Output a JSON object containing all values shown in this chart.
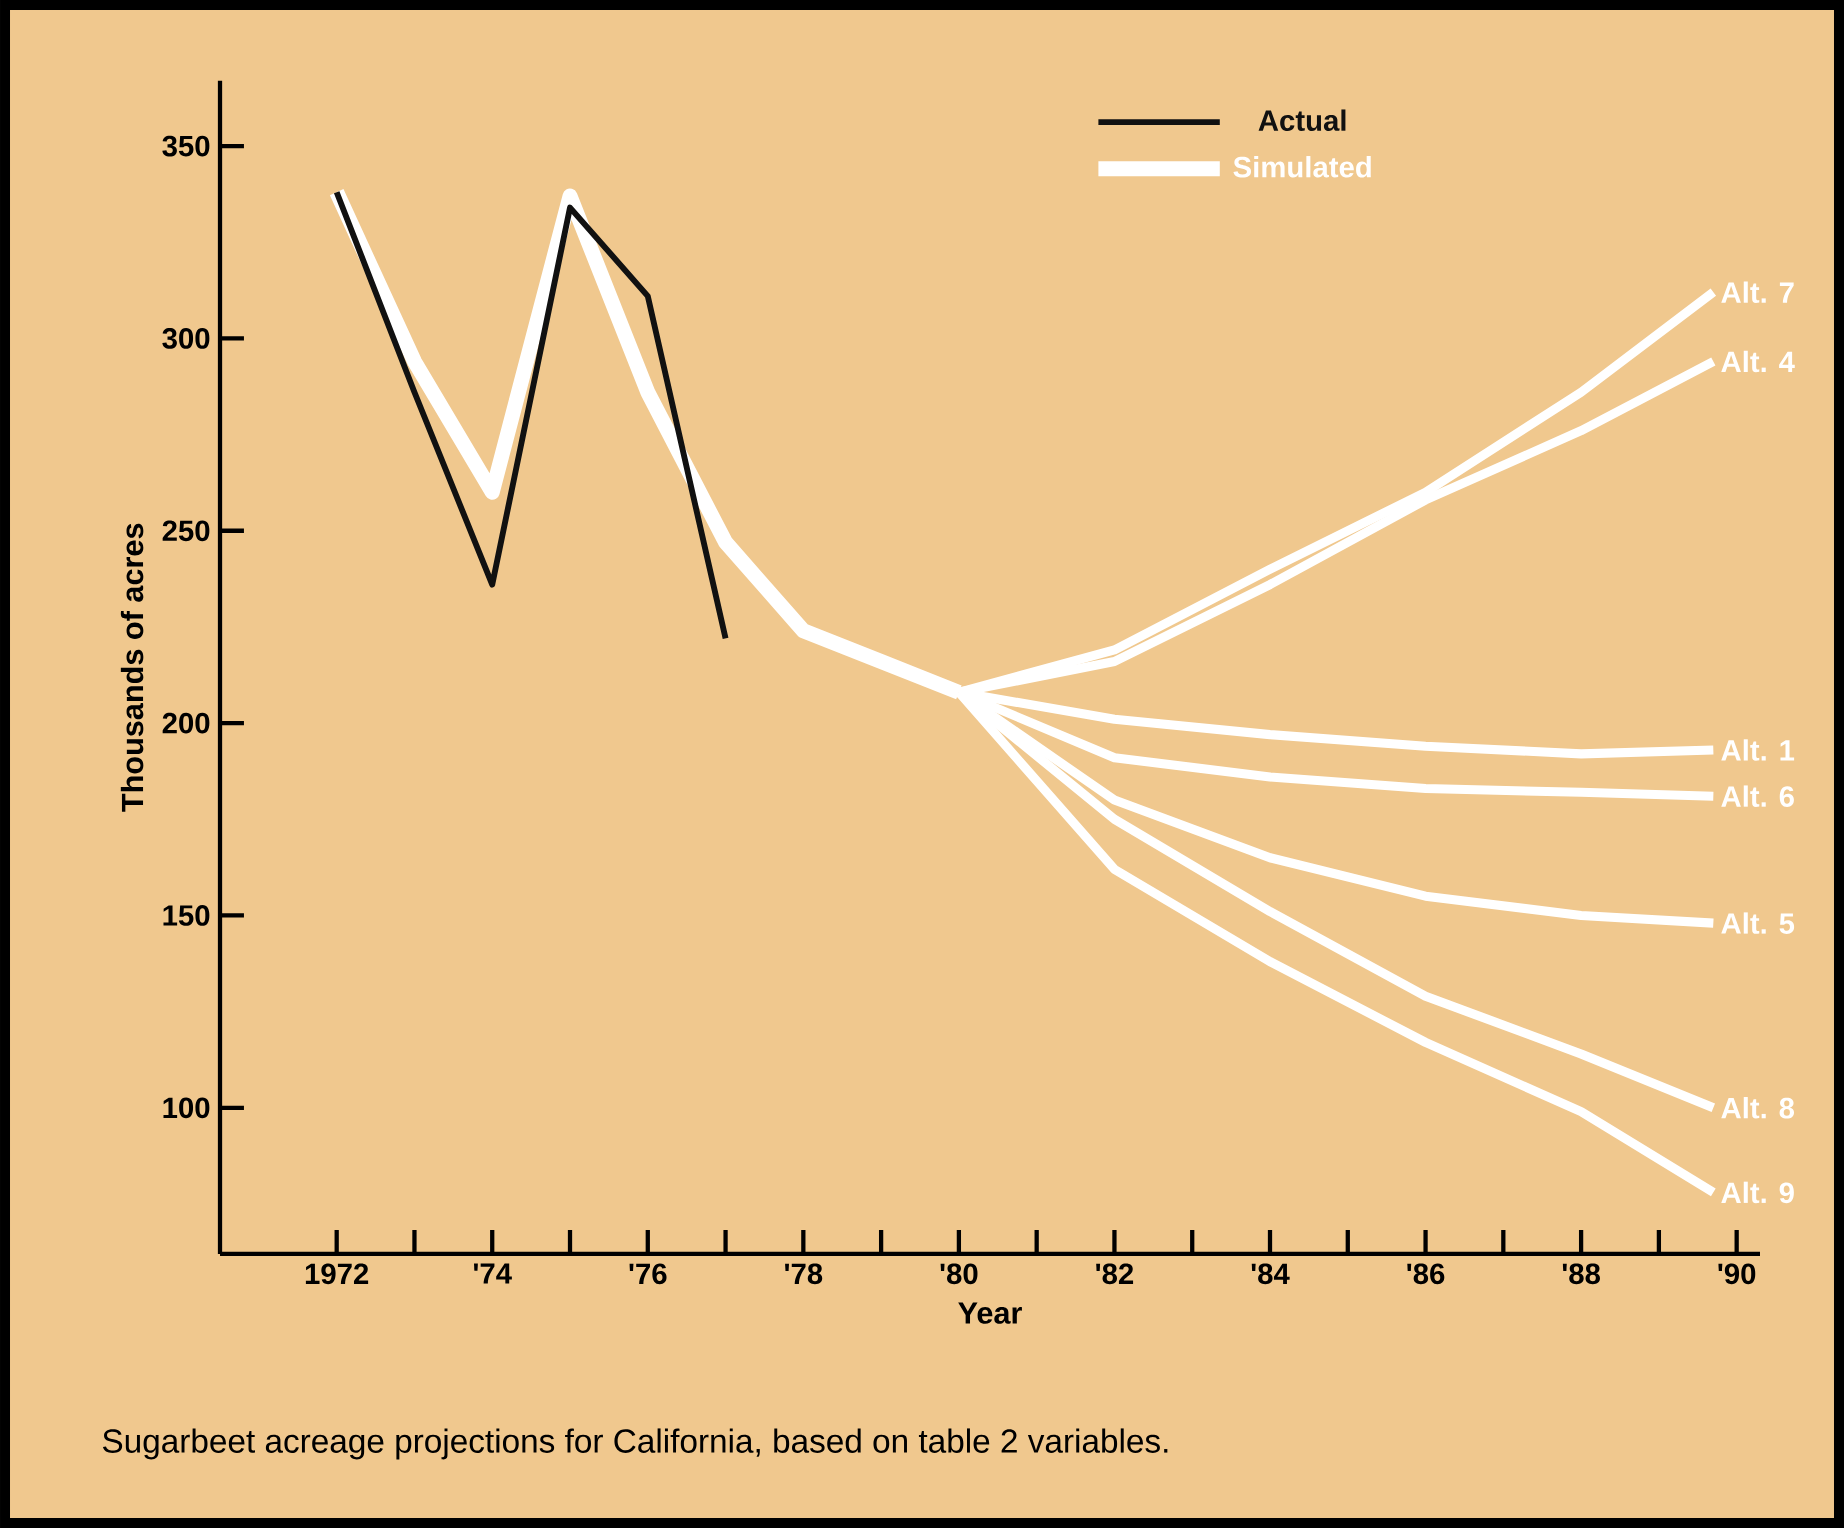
{
  "chart_data": {
    "type": "line",
    "xlabel": "Year",
    "ylabel": "Thousands of acres",
    "x": [
      1972,
      1973,
      1974,
      1975,
      1976,
      1977,
      1978,
      1979,
      1980
    ],
    "xlim": [
      1970.5,
      1990.3
    ],
    "ylim": [
      62,
      367
    ],
    "xticks": [
      {
        "value": 1972,
        "label": "1972"
      },
      {
        "value": 1973,
        "label": null
      },
      {
        "value": 1974,
        "label": "'74"
      },
      {
        "value": 1975,
        "label": null
      },
      {
        "value": 1976,
        "label": "'76"
      },
      {
        "value": 1977,
        "label": null
      },
      {
        "value": 1978,
        "label": "'78"
      },
      {
        "value": 1979,
        "label": null
      },
      {
        "value": 1980,
        "label": "'80"
      },
      {
        "value": 1981,
        "label": null
      },
      {
        "value": 1982,
        "label": "'82"
      },
      {
        "value": 1983,
        "label": null
      },
      {
        "value": 1984,
        "label": "'84"
      },
      {
        "value": 1985,
        "label": null
      },
      {
        "value": 1986,
        "label": "'86"
      },
      {
        "value": 1987,
        "label": null
      },
      {
        "value": 1988,
        "label": "'88"
      },
      {
        "value": 1989,
        "label": null
      },
      {
        "value": 1990,
        "label": "'90"
      }
    ],
    "yticks": [
      100,
      150,
      200,
      250,
      300,
      350
    ],
    "legend": "top",
    "series": [
      {
        "name": "Simulated",
        "color": "#ffffff",
        "values": [
          338,
          294,
          260,
          337,
          286,
          247,
          224,
          216,
          208
        ]
      },
      {
        "name": "Actual",
        "color": "#111111",
        "values": [
          338,
          286,
          236,
          334,
          311,
          222,
          null,
          null,
          null
        ]
      },
      {
        "name": "Alt. 7",
        "color": "#ffffff",
        "x": [
          1980,
          1982,
          1984,
          1986,
          1988,
          1989.7
        ],
        "values": [
          208,
          219,
          240,
          260,
          286,
          312
        ]
      },
      {
        "name": "Alt. 4",
        "color": "#ffffff",
        "x": [
          1980,
          1982,
          1984,
          1986,
          1988,
          1989.7
        ],
        "values": [
          208,
          216,
          236,
          258,
          276,
          294
        ]
      },
      {
        "name": "Alt. 1",
        "color": "#ffffff",
        "x": [
          1980,
          1982,
          1984,
          1986,
          1988,
          1989.7
        ],
        "values": [
          208,
          201,
          197,
          194,
          192,
          193
        ]
      },
      {
        "name": "Alt. 6",
        "color": "#ffffff",
        "x": [
          1980,
          1982,
          1984,
          1986,
          1988,
          1989.7
        ],
        "values": [
          208,
          191,
          186,
          183,
          182,
          181
        ]
      },
      {
        "name": "Alt. 5",
        "color": "#ffffff",
        "x": [
          1980,
          1982,
          1984,
          1986,
          1988,
          1989.7
        ],
        "values": [
          208,
          180,
          165,
          155,
          150,
          148
        ]
      },
      {
        "name": "Alt. 8",
        "color": "#ffffff",
        "x": [
          1980,
          1982,
          1984,
          1986,
          1988,
          1989.7
        ],
        "values": [
          208,
          175,
          151,
          129,
          114,
          100
        ]
      },
      {
        "name": "Alt. 9",
        "color": "#ffffff",
        "x": [
          1980,
          1982,
          1984,
          1986,
          1988,
          1989.7
        ],
        "values": [
          208,
          162,
          138,
          117,
          99,
          78
        ]
      }
    ],
    "annotations": [
      "Sugarbeet acreage projections for California, based on table 2 variables."
    ]
  }
}
